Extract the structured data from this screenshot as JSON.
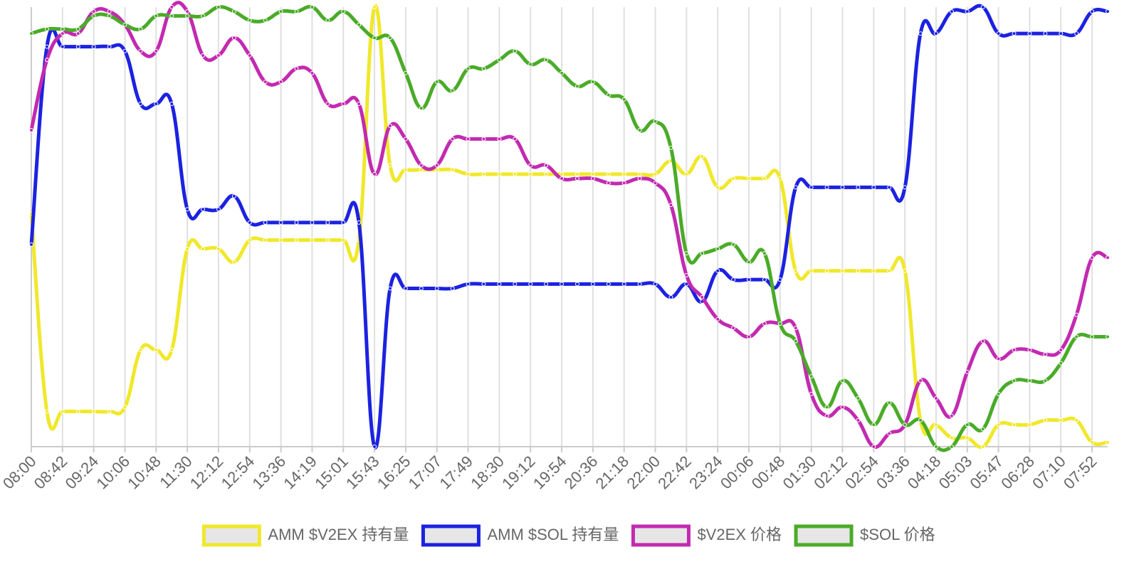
{
  "chart_data": {
    "type": "line",
    "categories": [
      "08:00",
      null,
      "08:42",
      null,
      "09:24",
      null,
      "10:06",
      null,
      "10:48",
      null,
      "11:30",
      null,
      "12:12",
      null,
      "12:54",
      null,
      "13:36",
      null,
      "14:19",
      null,
      "15:01",
      null,
      "15:43",
      null,
      "16:25",
      null,
      "17:07",
      null,
      "17:49",
      null,
      "18:30",
      null,
      "19:12",
      null,
      "19:54",
      null,
      "20:36",
      null,
      "21:18",
      null,
      "22:00",
      null,
      "22:42",
      null,
      "23:24",
      null,
      "00:06",
      null,
      "00:48",
      null,
      "01:30",
      null,
      "02:12",
      null,
      "02:54",
      null,
      "03:36",
      null,
      "04:18",
      null,
      "05:03",
      null,
      "05:47",
      null,
      "06:28",
      null,
      "07:10",
      null,
      "07:52",
      null
    ],
    "ylim": [
      0,
      100
    ],
    "grid": true,
    "legend": "bottom",
    "series": [
      {
        "name": "AMM $V2EX 持有量",
        "color": "#f0e82a",
        "values": [
          53,
          8,
          8,
          8,
          8,
          8,
          9,
          22,
          22,
          22,
          45,
          45,
          45,
          42,
          47,
          47,
          47,
          47,
          47,
          47,
          47,
          47,
          100,
          64,
          63,
          63,
          63,
          63,
          62,
          62,
          62,
          62,
          62,
          62,
          62,
          62,
          62,
          62,
          62,
          62,
          62,
          65,
          62,
          66,
          59,
          61,
          61,
          61,
          61,
          40,
          40,
          40,
          40,
          40,
          40,
          40,
          40,
          6,
          5,
          2,
          2,
          0,
          5,
          5,
          5,
          6,
          6,
          6,
          1,
          1
        ]
      },
      {
        "name": "AMM $SOL 持有量",
        "color": "#1c22e0",
        "values": [
          46,
          91,
          91,
          91,
          91,
          91,
          90,
          78,
          78,
          78,
          54,
          54,
          54,
          57,
          51,
          51,
          51,
          51,
          51,
          51,
          51,
          51,
          0,
          36,
          36,
          36,
          36,
          36,
          37,
          37,
          37,
          37,
          37,
          37,
          37,
          37,
          37,
          37,
          37,
          37,
          37,
          34,
          37,
          33,
          40,
          38,
          38,
          38,
          38,
          59,
          59,
          59,
          59,
          59,
          59,
          59,
          59,
          94,
          94,
          99,
          99,
          100,
          94,
          94,
          94,
          94,
          94,
          94,
          99,
          99
        ]
      },
      {
        "name": "$V2EX 价格",
        "color": "#c22ab0",
        "values": [
          72,
          88,
          94,
          94,
          99,
          99,
          96,
          90,
          90,
          100,
          99,
          89,
          89,
          93,
          89,
          83,
          83,
          86,
          85,
          78,
          78,
          78,
          62,
          73,
          70,
          64,
          64,
          70,
          70,
          70,
          70,
          70,
          64,
          64,
          61,
          61,
          61,
          60,
          60,
          61,
          60,
          55,
          39,
          34,
          29,
          27,
          25,
          28,
          28,
          27,
          12,
          7,
          9,
          6,
          0,
          3,
          5,
          15,
          11,
          7,
          17,
          24,
          20,
          22,
          22,
          21,
          22,
          30,
          43,
          43
        ]
      },
      {
        "name": "$SOL 价格",
        "color": "#4aab28",
        "values": [
          94,
          95,
          95,
          95,
          98,
          98,
          96,
          95,
          98,
          98,
          98,
          98,
          100,
          99,
          97,
          97,
          99,
          99,
          100,
          97,
          99,
          96,
          93,
          93,
          85,
          77,
          83,
          81,
          86,
          86,
          88,
          90,
          87,
          88,
          85,
          82,
          83,
          80,
          79,
          72,
          74,
          68,
          44,
          44,
          45,
          46,
          42,
          44,
          28,
          24,
          16,
          9,
          15,
          11,
          5,
          10,
          5,
          6,
          0,
          0,
          5,
          4,
          12,
          15,
          15,
          15,
          19,
          25,
          25,
          25
        ]
      }
    ]
  }
}
